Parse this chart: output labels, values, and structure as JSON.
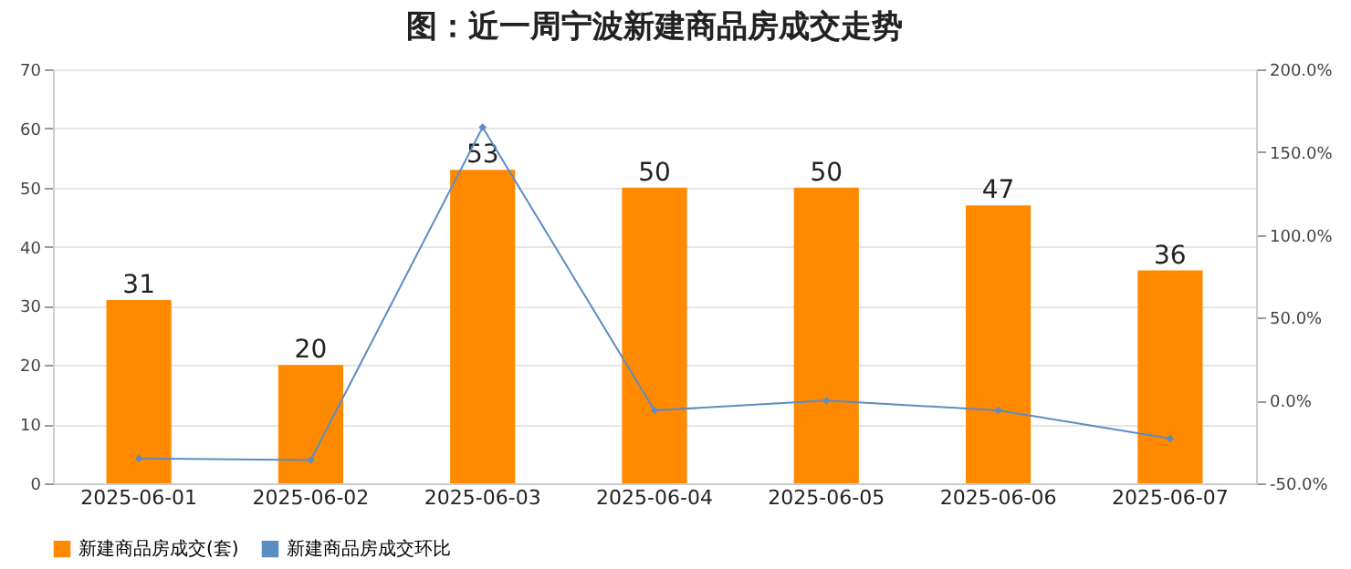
{
  "chart_data": {
    "type": "bar",
    "title": "图：近一周宁波新建商品房成交走势",
    "categories": [
      "2025-06-01",
      "2025-06-02",
      "2025-06-03",
      "2025-06-04",
      "2025-06-05",
      "2025-06-06",
      "2025-06-07"
    ],
    "series": [
      {
        "name": "新建商品房成交(套)",
        "color": "#ff8a00",
        "values": [
          31,
          20,
          53,
          50,
          50,
          47,
          36
        ],
        "value_labels": [
          "31",
          "20",
          "53",
          "50",
          "50",
          "47",
          "36"
        ]
      },
      {
        "name": "新建商品房成交环比",
        "type": "line",
        "axis": "y2",
        "color": "#5b8cc4",
        "marker": "diamond",
        "values": [
          -35,
          -36,
          165,
          -6,
          0,
          -6,
          -23
        ]
      }
    ],
    "ylim": [
      0,
      70
    ],
    "yticks": [
      0,
      10,
      20,
      30,
      40,
      50,
      60,
      70
    ],
    "y2lim": [
      -50,
      200
    ],
    "y2ticks": [
      {
        "value": -50,
        "label": "-50.0%"
      },
      {
        "value": 0,
        "label": "0.0%"
      },
      {
        "value": 50,
        "label": "50.0%"
      },
      {
        "value": 100,
        "label": "100.0%"
      },
      {
        "value": 150,
        "label": "150.0%"
      },
      {
        "value": 200,
        "label": "200.0%"
      }
    ],
    "grid": "y",
    "legend": "bottom"
  }
}
